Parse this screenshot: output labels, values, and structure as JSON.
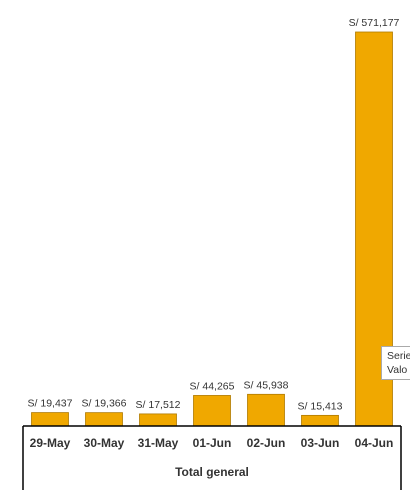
{
  "chart_data": {
    "type": "bar",
    "categories": [
      "29-May",
      "30-May",
      "31-May",
      "01-Jun",
      "02-Jun",
      "03-Jun",
      "04-Jun"
    ],
    "group_label": "Total general",
    "series": [
      {
        "values": [
          19437,
          19366,
          17512,
          44265,
          45938,
          15413,
          571177
        ],
        "data_labels": [
          "S/ 19,437",
          "S/ 19,366",
          "S/ 17,512",
          "S/ 44,265",
          "S/ 45,938",
          "S/ 15,413",
          "S/ 571,177"
        ]
      }
    ],
    "ylim": [
      0,
      571177
    ],
    "grid": false,
    "legend": "none",
    "bar_color": "#F0A800"
  },
  "tooltip": {
    "line1": "Serie",
    "line2": "Valo"
  }
}
